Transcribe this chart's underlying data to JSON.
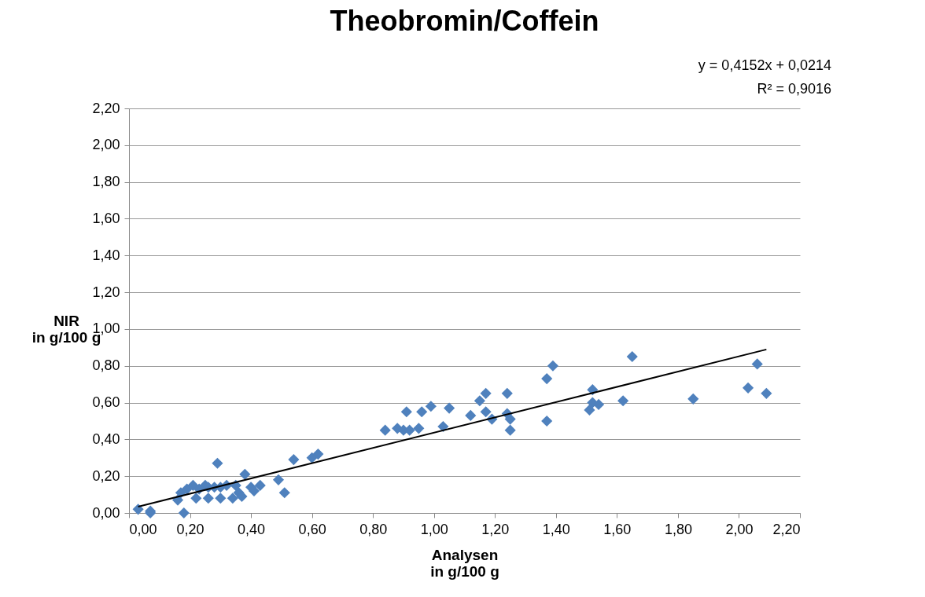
{
  "chart_data": {
    "type": "scatter",
    "title": "Theobromin/Coffein",
    "xlabel": "Analysen\nin g/100 g",
    "ylabel": "NIR\nin g/100 g",
    "annotations": [
      "y = 0,4152x + 0,0214",
      "R² = 0,9016"
    ],
    "xlim": [
      0,
      2.2
    ],
    "ylim": [
      0,
      2.2
    ],
    "xticks": [
      {
        "value": 0,
        "label": "0,00"
      },
      {
        "value": 0.2,
        "label": "0,20"
      },
      {
        "value": 0.4,
        "label": "0,40"
      },
      {
        "value": 0.6,
        "label": "0,60"
      },
      {
        "value": 0.8,
        "label": "0,80"
      },
      {
        "value": 1,
        "label": "1,00"
      },
      {
        "value": 1.2,
        "label": "1,20"
      },
      {
        "value": 1.4,
        "label": "1,40"
      },
      {
        "value": 1.6,
        "label": "1,60"
      },
      {
        "value": 1.8,
        "label": "1,80"
      },
      {
        "value": 2,
        "label": "2,00"
      },
      {
        "value": 2.2,
        "label": "2,20"
      }
    ],
    "yticks": [
      {
        "value": 0,
        "label": "0,00"
      },
      {
        "value": 0.2,
        "label": "0,20"
      },
      {
        "value": 0.4,
        "label": "0,40"
      },
      {
        "value": 0.6,
        "label": "0,60"
      },
      {
        "value": 0.8,
        "label": "0,80"
      },
      {
        "value": 1,
        "label": "1,00"
      },
      {
        "value": 1.2,
        "label": "1,20"
      },
      {
        "value": 1.4,
        "label": "1,40"
      },
      {
        "value": 1.6,
        "label": "1,60"
      },
      {
        "value": 1.8,
        "label": "1,80"
      },
      {
        "value": 2,
        "label": "2,00"
      },
      {
        "value": 2.2,
        "label": "2,20"
      }
    ],
    "grid": "y",
    "series": [
      {
        "marker": "diamond",
        "color": "#4f81bd",
        "x": [
          0.03,
          0.07,
          0.07,
          0.16,
          0.18,
          0.17,
          0.19,
          0.21,
          0.23,
          0.25,
          0.26,
          0.28,
          0.29,
          0.3,
          0.32,
          0.35,
          0.36,
          0.38,
          0.4,
          0.43,
          0.49,
          0.51,
          0.54,
          0.6,
          0.62,
          0.22,
          0.26,
          0.3,
          0.34,
          0.37,
          0.41,
          0.84,
          0.88,
          0.9,
          0.91,
          0.92,
          0.95,
          0.96,
          0.99,
          1.03,
          1.05,
          1.12,
          1.15,
          1.17,
          1.17,
          1.19,
          1.24,
          1.24,
          1.25,
          1.25,
          1.37,
          1.37,
          1.39,
          1.51,
          1.52,
          1.52,
          1.54,
          1.62,
          1.65,
          1.85,
          2.03,
          2.06,
          2.09
        ],
        "values": [
          0.02,
          0.0,
          0.01,
          0.07,
          0.0,
          0.11,
          0.13,
          0.15,
          0.13,
          0.15,
          0.14,
          0.14,
          0.27,
          0.14,
          0.15,
          0.15,
          0.11,
          0.21,
          0.14,
          0.15,
          0.18,
          0.11,
          0.29,
          0.3,
          0.32,
          0.08,
          0.08,
          0.08,
          0.08,
          0.09,
          0.12,
          0.45,
          0.46,
          0.45,
          0.55,
          0.45,
          0.46,
          0.55,
          0.58,
          0.47,
          0.57,
          0.53,
          0.61,
          0.65,
          0.55,
          0.51,
          0.65,
          0.54,
          0.45,
          0.51,
          0.5,
          0.73,
          0.8,
          0.56,
          0.6,
          0.67,
          0.59,
          0.61,
          0.85,
          0.62,
          0.68,
          0.81,
          0.65
        ]
      },
      {
        "type": "line",
        "color": "#000000",
        "x": [
          0.03,
          2.09
        ],
        "values": [
          0.034,
          0.889
        ]
      }
    ]
  }
}
